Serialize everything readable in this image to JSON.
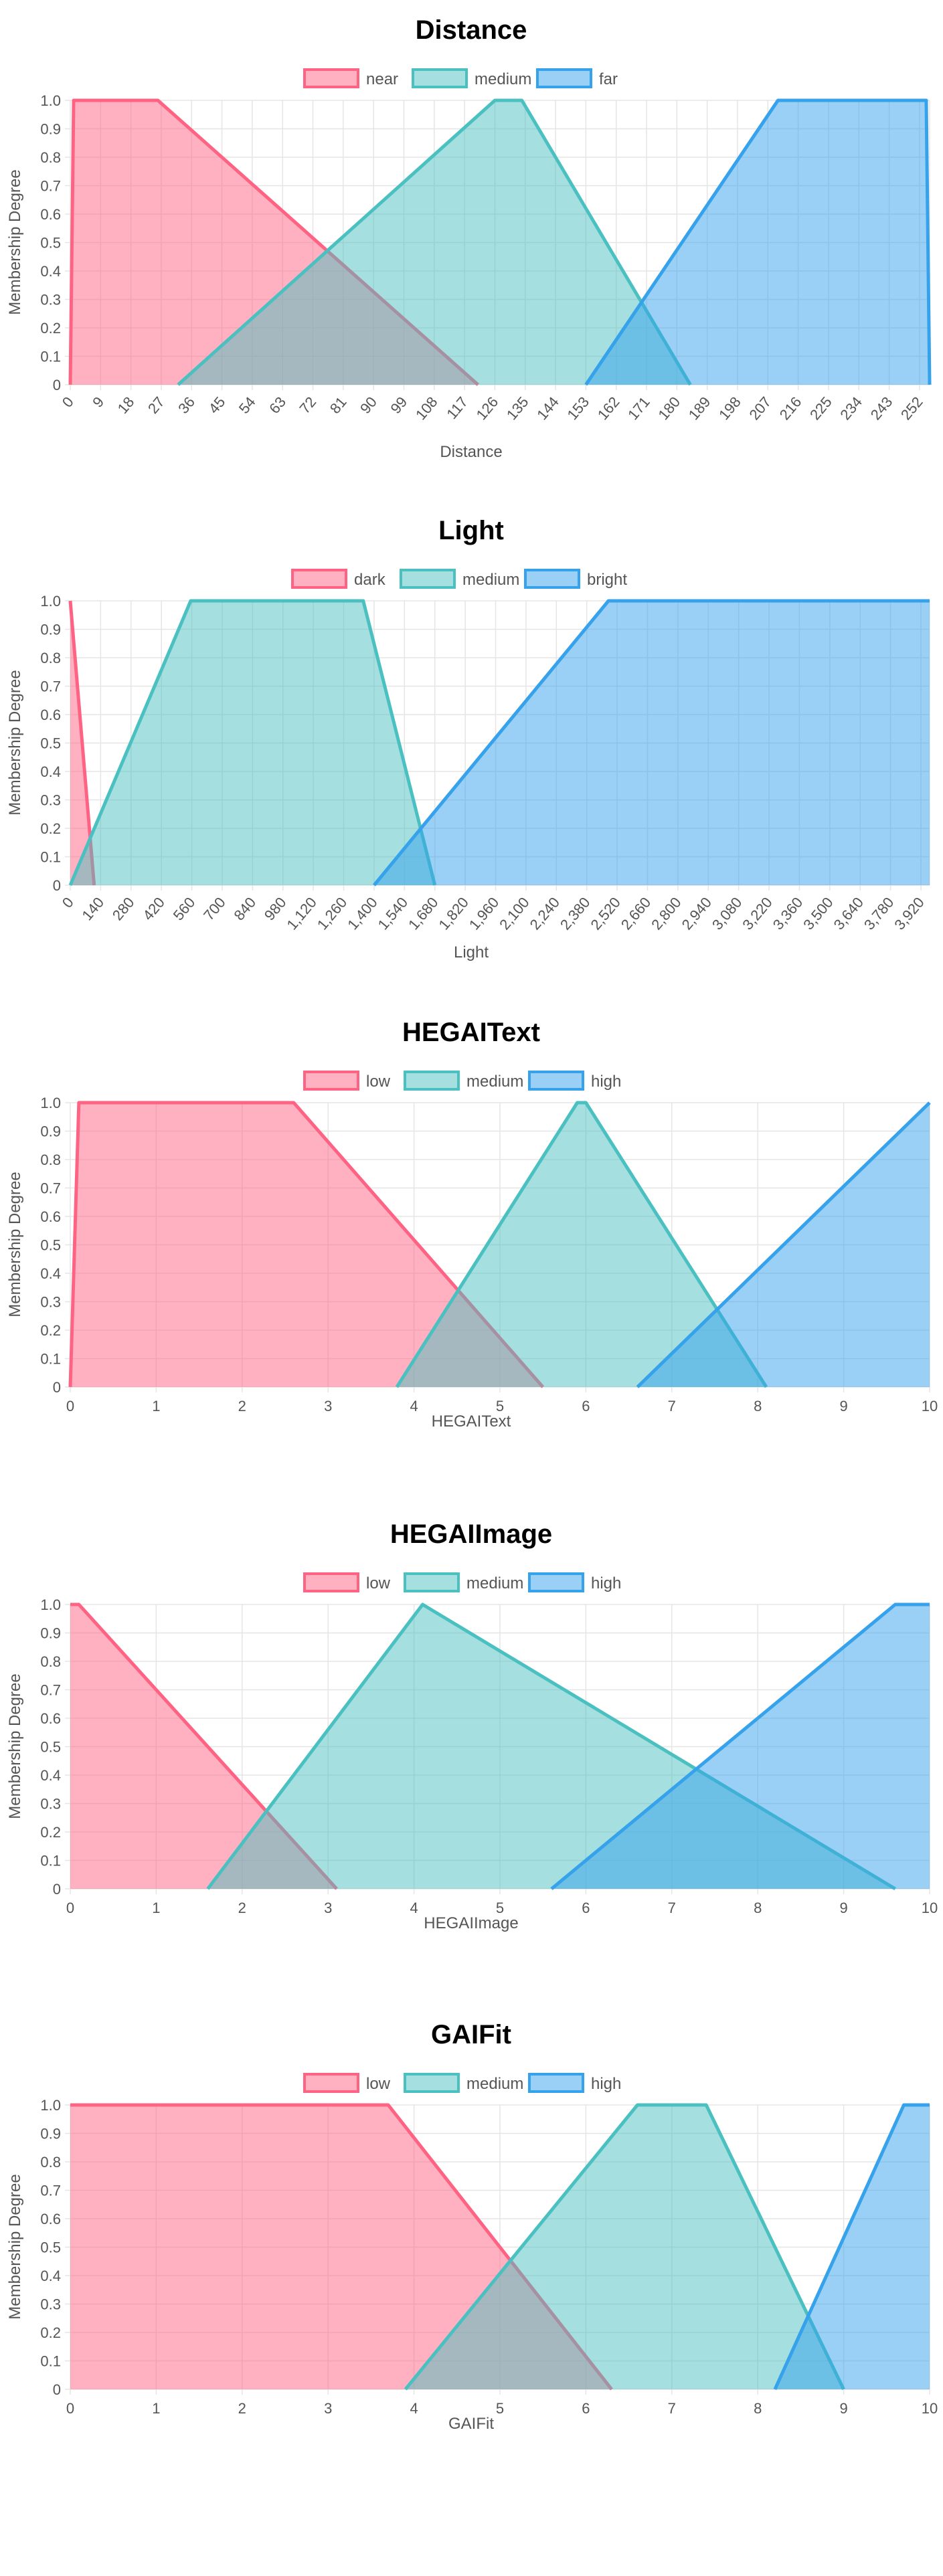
{
  "colors": {
    "red_line": "#ff6384",
    "red_fill": "rgba(255,99,132,0.5)",
    "teal_line": "#4bc0c0",
    "teal_fill": "rgba(75,192,192,0.5)",
    "blue_line": "#36a2eb",
    "blue_fill": "rgba(54,162,235,0.5)",
    "grid": "#e5e5e5"
  },
  "chart_data": [
    {
      "type": "area",
      "title": "Distance",
      "xlabel": "Distance",
      "ylabel": "Membership Degree",
      "xlim": [
        0,
        255
      ],
      "ylim": [
        0,
        1
      ],
      "grid": true,
      "legend_position": "top",
      "x_ticks": [
        "0",
        "9",
        "18",
        "27",
        "36",
        "45",
        "54",
        "63",
        "72",
        "81",
        "90",
        "99",
        "108",
        "117",
        "126",
        "135",
        "144",
        "153",
        "162",
        "171",
        "180",
        "189",
        "198",
        "207",
        "216",
        "225",
        "234",
        "243",
        "252"
      ],
      "x_tick_step": 9,
      "x_tick_rotation": -50,
      "y_ticks": [
        "0",
        "0.1",
        "0.2",
        "0.3",
        "0.4",
        "0.5",
        "0.6",
        "0.7",
        "0.8",
        "0.9",
        "1.0"
      ],
      "series": [
        {
          "name": "near",
          "color": "red",
          "points": [
            [
              0,
              0
            ],
            [
              1,
              1
            ],
            [
              26,
              1
            ],
            [
              121,
              0
            ]
          ]
        },
        {
          "name": "medium",
          "color": "teal",
          "points": [
            [
              32,
              0
            ],
            [
              126,
              1
            ],
            [
              134,
              1
            ],
            [
              184,
              0
            ]
          ]
        },
        {
          "name": "far",
          "color": "blue",
          "points": [
            [
              153,
              0
            ],
            [
              210,
              1
            ],
            [
              254,
              1
            ],
            [
              255,
              0
            ]
          ]
        }
      ]
    },
    {
      "type": "area",
      "title": "Light",
      "xlabel": "Light",
      "ylabel": "Membership Degree",
      "xlim": [
        0,
        3960
      ],
      "ylim": [
        0,
        1
      ],
      "grid": true,
      "legend_position": "top",
      "x_ticks": [
        "0",
        "140",
        "280",
        "420",
        "560",
        "700",
        "840",
        "980",
        "1,120",
        "1,260",
        "1,400",
        "1,540",
        "1,680",
        "1,820",
        "1,960",
        "2,100",
        "2,240",
        "2,380",
        "2,520",
        "2,660",
        "2,800",
        "2,940",
        "3,080",
        "3,220",
        "3,360",
        "3,500",
        "3,640",
        "3,780",
        "3,920"
      ],
      "x_tick_step": 140,
      "x_tick_rotation": -50,
      "y_ticks": [
        "0",
        "0.1",
        "0.2",
        "0.3",
        "0.4",
        "0.5",
        "0.6",
        "0.7",
        "0.8",
        "0.9",
        "1.0"
      ],
      "series": [
        {
          "name": "dark",
          "color": "red",
          "points": [
            [
              0,
              1
            ],
            [
              110,
              0
            ]
          ]
        },
        {
          "name": "medium",
          "color": "teal",
          "points": [
            [
              0,
              0
            ],
            [
              555,
              1
            ],
            [
              1350,
              1
            ],
            [
              1680,
              0
            ]
          ]
        },
        {
          "name": "bright",
          "color": "blue",
          "points": [
            [
              1400,
              0
            ],
            [
              2480,
              1
            ],
            [
              3960,
              1
            ]
          ]
        }
      ]
    },
    {
      "type": "area",
      "title": "HEGAIText",
      "xlabel": "HEGAIText",
      "ylabel": "Membership Degree",
      "xlim": [
        0,
        10
      ],
      "ylim": [
        0,
        1
      ],
      "grid": true,
      "legend_position": "top",
      "x_ticks": [
        "0",
        "1",
        "2",
        "3",
        "4",
        "5",
        "6",
        "7",
        "8",
        "9",
        "10"
      ],
      "x_tick_step": 1,
      "x_tick_rotation": 0,
      "y_ticks": [
        "0",
        "0.1",
        "0.2",
        "0.3",
        "0.4",
        "0.5",
        "0.6",
        "0.7",
        "0.8",
        "0.9",
        "1.0"
      ],
      "series": [
        {
          "name": "low",
          "color": "red",
          "points": [
            [
              0,
              0
            ],
            [
              0.1,
              1
            ],
            [
              2.6,
              1
            ],
            [
              5.5,
              0
            ]
          ]
        },
        {
          "name": "medium",
          "color": "teal",
          "points": [
            [
              3.8,
              0
            ],
            [
              5.9,
              1
            ],
            [
              6.0,
              1
            ],
            [
              8.1,
              0
            ]
          ]
        },
        {
          "name": "high",
          "color": "blue",
          "points": [
            [
              6.6,
              0
            ],
            [
              10,
              1
            ]
          ]
        }
      ]
    },
    {
      "type": "area",
      "title": "HEGAIImage",
      "xlabel": "HEGAIImage",
      "ylabel": "Membership Degree",
      "xlim": [
        0,
        10
      ],
      "ylim": [
        0,
        1
      ],
      "grid": true,
      "legend_position": "top",
      "x_ticks": [
        "0",
        "1",
        "2",
        "3",
        "4",
        "5",
        "6",
        "7",
        "8",
        "9",
        "10"
      ],
      "x_tick_step": 1,
      "x_tick_rotation": 0,
      "y_ticks": [
        "0",
        "0.1",
        "0.2",
        "0.3",
        "0.4",
        "0.5",
        "0.6",
        "0.7",
        "0.8",
        "0.9",
        "1.0"
      ],
      "series": [
        {
          "name": "low",
          "color": "red",
          "points": [
            [
              0,
              1
            ],
            [
              0.1,
              1
            ],
            [
              3.1,
              0
            ]
          ]
        },
        {
          "name": "medium",
          "color": "teal",
          "points": [
            [
              1.6,
              0
            ],
            [
              4.1,
              1
            ],
            [
              9.6,
              0
            ]
          ]
        },
        {
          "name": "high",
          "color": "blue",
          "points": [
            [
              5.6,
              0
            ],
            [
              9.6,
              1
            ],
            [
              10,
              1
            ]
          ]
        }
      ]
    },
    {
      "type": "area",
      "title": "GAIFit",
      "xlabel": "GAIFit",
      "ylabel": "Membership Degree",
      "xlim": [
        0,
        10
      ],
      "ylim": [
        0,
        1
      ],
      "grid": true,
      "legend_position": "top",
      "x_ticks": [
        "0",
        "1",
        "2",
        "3",
        "4",
        "5",
        "6",
        "7",
        "8",
        "9",
        "10"
      ],
      "x_tick_step": 1,
      "x_tick_rotation": 0,
      "y_ticks": [
        "0",
        "0.1",
        "0.2",
        "0.3",
        "0.4",
        "0.5",
        "0.6",
        "0.7",
        "0.8",
        "0.9",
        "1.0"
      ],
      "series": [
        {
          "name": "low",
          "color": "red",
          "points": [
            [
              0,
              1
            ],
            [
              3.7,
              1
            ],
            [
              6.3,
              0
            ]
          ]
        },
        {
          "name": "medium",
          "color": "teal",
          "points": [
            [
              3.9,
              0
            ],
            [
              6.6,
              1
            ],
            [
              7.4,
              1
            ],
            [
              9.0,
              0
            ]
          ]
        },
        {
          "name": "high",
          "color": "blue",
          "points": [
            [
              8.2,
              0
            ],
            [
              9.7,
              1
            ],
            [
              10,
              1
            ]
          ]
        }
      ]
    }
  ]
}
